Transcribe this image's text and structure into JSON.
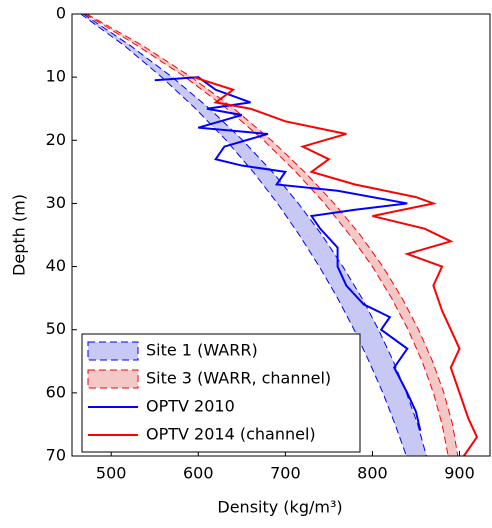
{
  "chart_data": {
    "type": "line",
    "xlabel": "Density (kg/m³)",
    "ylabel": "Depth (m)",
    "xlim": [
      455,
      935
    ],
    "ylim": [
      0,
      70
    ],
    "y_inverted": true,
    "xticks": [
      500,
      600,
      700,
      800,
      900
    ],
    "yticks": [
      0,
      10,
      20,
      30,
      40,
      50,
      60,
      70
    ],
    "legend": "lower left",
    "bands": [
      {
        "name": "Site 1 (WARR)",
        "color": "#0000ff",
        "fill": "#c8c8f5",
        "y": [
          0,
          5,
          10,
          15,
          20,
          25,
          30,
          35,
          40,
          45,
          50,
          55,
          60,
          65,
          70
        ],
        "x_low": [
          465,
          515,
          558,
          597,
          632,
          663,
          691,
          716,
          739,
          760,
          779,
          796,
          812,
          826,
          839
        ],
        "x_high": [
          468,
          522,
          570,
          613,
          651,
          685,
          715,
          742,
          766,
          788,
          807,
          824,
          839,
          852,
          862
        ]
      },
      {
        "name": "Site 3 (WARR, channel)",
        "color": "#ff0000",
        "fill": "#f5c8c8",
        "y": [
          0,
          5,
          10,
          15,
          20,
          25,
          30,
          35,
          40,
          45,
          50,
          55,
          60,
          65,
          70
        ],
        "x_low": [
          470,
          530,
          585,
          633,
          675,
          712,
          745,
          774,
          800,
          822,
          841,
          857,
          870,
          880,
          887
        ],
        "x_high": [
          472,
          536,
          592,
          641,
          684,
          722,
          756,
          786,
          812,
          834,
          853,
          869,
          882,
          892,
          898
        ]
      }
    ],
    "series": [
      {
        "name": "OPTV 2010",
        "color": "#0000ff",
        "x": [
          550,
          600,
          620,
          640,
          660,
          610,
          650,
          600,
          680,
          630,
          620,
          650,
          700,
          690,
          760,
          840,
          780,
          730,
          740,
          760,
          760,
          770,
          790,
          820,
          810,
          840,
          825,
          840,
          850,
          855
        ],
        "y": [
          10.5,
          10,
          12,
          13,
          14,
          15,
          16,
          18,
          19,
          21,
          23,
          24,
          25,
          27,
          28,
          30,
          31,
          32,
          34,
          37,
          40,
          43,
          46,
          48,
          50,
          53,
          56,
          60,
          63,
          66
        ]
      },
      {
        "name": "OPTV 2014 (channel)",
        "color": "#ff0000",
        "x": [
          595,
          640,
          620,
          660,
          700,
          770,
          720,
          750,
          730,
          780,
          850,
          870,
          800,
          860,
          890,
          840,
          880,
          870,
          880,
          890,
          900,
          890,
          900,
          910,
          920,
          905
        ],
        "y": [
          10,
          12,
          14,
          15,
          17,
          19,
          21,
          23,
          25,
          27,
          29,
          30,
          32,
          34,
          36,
          38,
          40,
          43,
          47,
          50,
          53,
          56,
          60,
          64,
          67,
          70
        ]
      }
    ]
  }
}
